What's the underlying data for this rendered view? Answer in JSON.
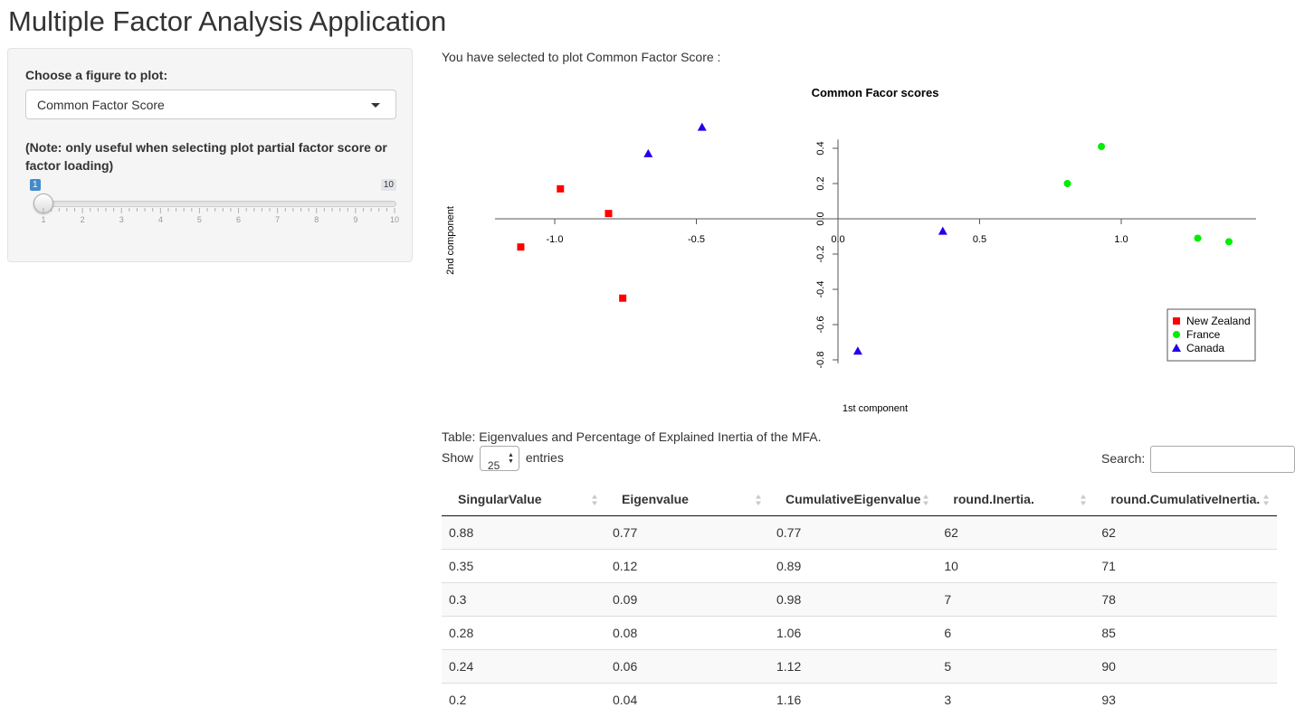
{
  "app": {
    "title": "Multiple Factor Analysis Application"
  },
  "sidebar": {
    "figure_label": "Choose a figure to plot:",
    "figure_selected": "Common Factor Score",
    "note_label": "(Note: only useful when selecting plot partial factor score or factor loading)",
    "slider": {
      "min": 1,
      "max": 10,
      "value": 1,
      "min_label": "1",
      "max_label": "10",
      "ticks": [
        "1",
        "2",
        "3",
        "4",
        "5",
        "6",
        "7",
        "8",
        "9",
        "10"
      ]
    }
  },
  "main": {
    "selected_text": "You have selected to plot Common Factor Score :",
    "table_caption": "Table: Eigenvalues and Percentage of Explained Inertia of the MFA.",
    "show_label": "Show",
    "entries_value": "25",
    "entries_label": "entries",
    "search_label": "Search:"
  },
  "chart_data": {
    "type": "scatter",
    "title": "Common Facor scores",
    "xlabel": "1st component",
    "ylabel": "2nd component",
    "x_ticks": [
      "-1.0",
      "-0.5",
      "0.0",
      "0.5",
      "1.0"
    ],
    "y_ticks": [
      "-0.8",
      "-0.6",
      "-0.4",
      "-0.2",
      "0.0",
      "0.2",
      "0.4"
    ],
    "legend_position": "bottom-right",
    "series": [
      {
        "name": "New Zealand",
        "marker": "square",
        "color": "#ff0000",
        "points": [
          [
            -1.12,
            -0.16
          ],
          [
            -0.98,
            0.17
          ],
          [
            -0.81,
            0.03
          ],
          [
            -0.76,
            -0.45
          ]
        ]
      },
      {
        "name": "France",
        "marker": "circle",
        "color": "#00ee00",
        "points": [
          [
            0.81,
            0.2
          ],
          [
            0.93,
            0.41
          ],
          [
            1.27,
            -0.11
          ],
          [
            1.38,
            -0.13
          ]
        ]
      },
      {
        "name": "Canada",
        "marker": "triangle",
        "color": "#2200ee",
        "points": [
          [
            -0.67,
            0.37
          ],
          [
            -0.48,
            0.52
          ],
          [
            0.37,
            -0.07
          ],
          [
            0.07,
            -0.75
          ]
        ]
      }
    ]
  },
  "table": {
    "columns": [
      "SingularValue",
      "Eigenvalue",
      "CumulativeEigenvalue",
      "round.Inertia.",
      "round.CumulativeInertia."
    ],
    "rows": [
      [
        "0.88",
        "0.77",
        "0.77",
        "62",
        "62"
      ],
      [
        "0.35",
        "0.12",
        "0.89",
        "10",
        "71"
      ],
      [
        "0.3",
        "0.09",
        "0.98",
        "7",
        "78"
      ],
      [
        "0.28",
        "0.08",
        "1.06",
        "6",
        "85"
      ],
      [
        "0.24",
        "0.06",
        "1.12",
        "5",
        "90"
      ],
      [
        "0.2",
        "0.04",
        "1.16",
        "3",
        "93"
      ]
    ]
  }
}
